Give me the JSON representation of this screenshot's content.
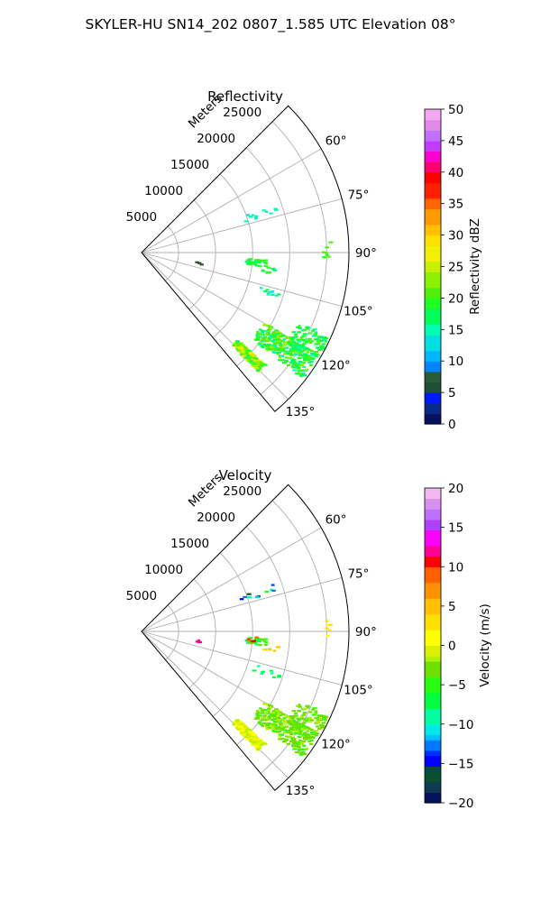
{
  "title": "SKYLER-HU  SN14_202  0807_1.585 UTC Elevation 08°",
  "chart_data": [
    {
      "type": "polar_sector",
      "title": "Reflectivity",
      "range_label": "Meters",
      "range_ticks": [
        5000,
        10000,
        15000,
        20000,
        25000
      ],
      "range_max": 28000,
      "azimuth_range_deg": [
        45,
        140
      ],
      "azimuth_ticks": [
        "60°",
        "75°",
        "90°",
        "105°",
        "120°",
        "135°"
      ],
      "azimuth_tick_values": [
        60,
        75,
        90,
        105,
        120,
        135
      ],
      "grid": true,
      "colorbar": {
        "label": "Reflectivity dBZ",
        "min": 0,
        "max": 50,
        "ticks": [
          "0",
          "5",
          "10",
          "15",
          "20",
          "25",
          "30",
          "35",
          "40",
          "45",
          "50"
        ],
        "tick_values": [
          0,
          5,
          10,
          15,
          20,
          25,
          30,
          35,
          40,
          45,
          50
        ]
      },
      "echoes": [
        {
          "az": 134,
          "r_min": 17500,
          "r_max": 22500,
          "value": 23,
          "spread": 6,
          "count": 240
        },
        {
          "az": 124,
          "r_min": 19000,
          "r_max": 27500,
          "value": 19,
          "spread": 5,
          "count": 260
        },
        {
          "az": 118,
          "r_min": 23000,
          "r_max": 27800,
          "value": 18,
          "spread": 3,
          "count": 90
        },
        {
          "az": 95,
          "r_min": 14000,
          "r_max": 17000,
          "value": 18,
          "spread": 1.5,
          "count": 30
        },
        {
          "az": 98,
          "r_min": 16500,
          "r_max": 18500,
          "value": 18,
          "spread": 1,
          "count": 10
        },
        {
          "az": 90.5,
          "r_min": 24500,
          "r_max": 25500,
          "value": 20,
          "spread": 0.6,
          "count": 8
        },
        {
          "az": 108,
          "r_min": 15500,
          "r_max": 19500,
          "value": 15,
          "spread": 1.5,
          "count": 10
        },
        {
          "az": 72,
          "r_min": 14000,
          "r_max": 19000,
          "value": 14,
          "spread": 1.2,
          "count": 12
        },
        {
          "az": 100,
          "r_min": 7500,
          "r_max": 9000,
          "value": 6,
          "spread": 0.8,
          "count": 3
        }
      ]
    },
    {
      "type": "polar_sector",
      "title": "Velocity",
      "range_label": "Meters",
      "range_ticks": [
        5000,
        10000,
        15000,
        20000,
        25000
      ],
      "range_max": 28000,
      "azimuth_range_deg": [
        45,
        140
      ],
      "azimuth_ticks": [
        "60°",
        "75°",
        "90°",
        "105°",
        "120°",
        "135°"
      ],
      "azimuth_tick_values": [
        60,
        75,
        90,
        105,
        120,
        135
      ],
      "grid": true,
      "colorbar": {
        "label": "Velocity (m/s)",
        "min": -20,
        "max": 20,
        "ticks": [
          "−20",
          "−15",
          "−10",
          "−5",
          "0",
          "5",
          "10",
          "15",
          "20"
        ],
        "tick_values": [
          -20,
          -15,
          -10,
          -5,
          0,
          5,
          10,
          15,
          20
        ]
      },
      "echoes": [
        {
          "az": 134,
          "r_min": 17500,
          "r_max": 22500,
          "value": 0,
          "spread": 2,
          "count": 240
        },
        {
          "az": 124,
          "r_min": 19000,
          "r_max": 27500,
          "value": -3,
          "spread": 2,
          "count": 260
        },
        {
          "az": 118,
          "r_min": 23000,
          "r_max": 27800,
          "value": -3,
          "spread": 1.5,
          "count": 90
        },
        {
          "az": 95,
          "r_min": 14000,
          "r_max": 17000,
          "value": -6,
          "spread": 3,
          "count": 30
        },
        {
          "az": 94,
          "r_min": 14500,
          "r_max": 16000,
          "value": 10,
          "spread": 1,
          "count": 6
        },
        {
          "az": 98,
          "r_min": 16500,
          "r_max": 18500,
          "value": 4,
          "spread": 1,
          "count": 6
        },
        {
          "az": 90.5,
          "r_min": 24500,
          "r_max": 25500,
          "value": 2,
          "spread": 0.5,
          "count": 6
        },
        {
          "az": 108,
          "r_min": 15500,
          "r_max": 19500,
          "value": -8,
          "spread": 1,
          "count": 10
        },
        {
          "az": 72,
          "r_min": 14000,
          "r_max": 19000,
          "value": -10,
          "spread": 6,
          "count": 12
        },
        {
          "az": 100,
          "r_min": 7500,
          "r_max": 9000,
          "value": 12,
          "spread": 1,
          "count": 3
        }
      ]
    }
  ]
}
